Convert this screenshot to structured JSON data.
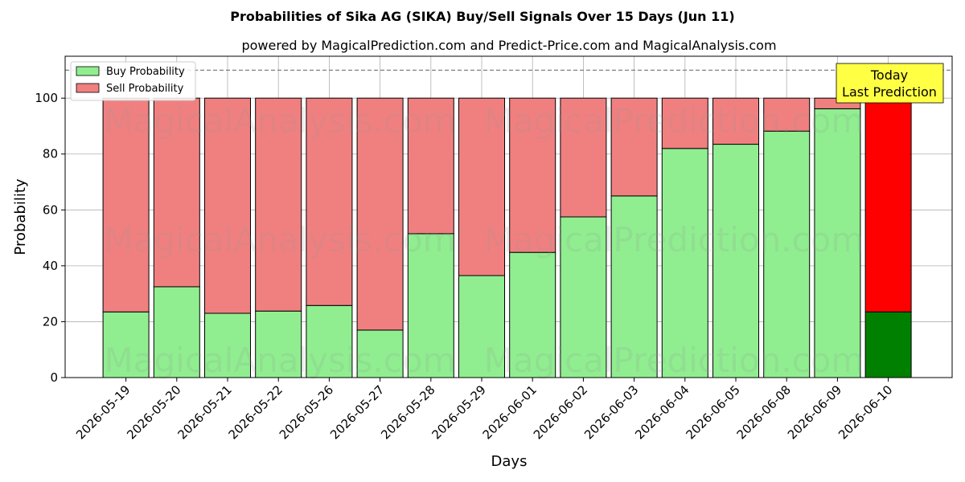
{
  "chart_data": {
    "type": "bar",
    "stacked": true,
    "title": "Probabilities of Sika AG (SIKA) Buy/Sell Signals Over 15 Days (Jun 11)",
    "subtitle": "powered by MagicalPrediction.com and Predict-Price.com and MagicalAnalysis.com",
    "xlabel": "Days",
    "ylabel": "Probability",
    "ylim": [
      0,
      115
    ],
    "yticks": [
      0,
      20,
      40,
      60,
      80,
      100
    ],
    "grid": true,
    "legend_position": "top-left",
    "reference_line": {
      "y": 110,
      "style": "dashed",
      "color": "#808080"
    },
    "categories": [
      "2026-05-19",
      "2026-05-20",
      "2026-05-21",
      "2026-05-22",
      "2026-05-26",
      "2026-05-27",
      "2026-05-28",
      "2026-05-29",
      "2026-06-01",
      "2026-06-02",
      "2026-06-03",
      "2026-06-04",
      "2026-06-05",
      "2026-06-08",
      "2026-06-09",
      "2026-06-10"
    ],
    "series": [
      {
        "name": "Buy Probability",
        "color": "#90ee90",
        "highlight_color": "#008000",
        "values": [
          23.5,
          32.5,
          23.0,
          23.8,
          25.8,
          17.0,
          51.5,
          36.5,
          44.8,
          57.5,
          65.0,
          82.0,
          83.5,
          88.2,
          96.2,
          23.5
        ]
      },
      {
        "name": "Sell Probability",
        "color": "#f08080",
        "highlight_color": "#ff0000",
        "values": [
          76.5,
          67.5,
          77.0,
          76.2,
          74.2,
          83.0,
          48.5,
          63.5,
          55.2,
          42.5,
          35.0,
          18.0,
          16.5,
          11.8,
          3.8,
          76.5
        ]
      }
    ],
    "highlight_index": 15,
    "annotation": {
      "lines": [
        "Today",
        "Last Prediction"
      ],
      "background": "#ffff44",
      "target_category": "2026-06-10"
    },
    "watermarks": [
      "MagicalAnalysis.com",
      "MagicalPrediction.com"
    ]
  }
}
